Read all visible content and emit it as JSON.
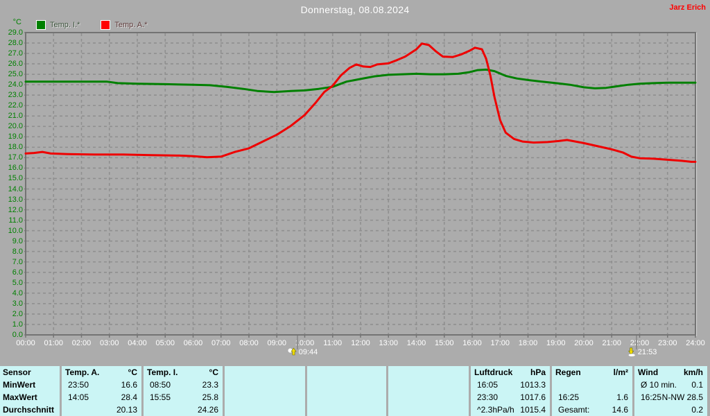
{
  "header": {
    "title": "Donnerstag, 08.08.2024",
    "author": "Jarz Erich"
  },
  "chart_data": {
    "type": "line",
    "title": "Donnerstag, 08.08.2024",
    "xlabel": "",
    "ylabel": "°C",
    "unit": "°C",
    "xlim_hours": [
      0,
      24
    ],
    "ylim": [
      0,
      29
    ],
    "ytick_step": 1.0,
    "grid": true,
    "legend_position": "top-left",
    "colors": {
      "temp_i": "#008000",
      "temp_a": "#ee0000",
      "grid": "#8f8f8f",
      "border": "#737373",
      "background": "#acacac",
      "axis_text_y": "#008000",
      "axis_text_x": "#ffffff"
    },
    "xticks": [
      "00:00",
      "01:00",
      "02:00",
      "03:00",
      "04:00",
      "05:00",
      "06:00",
      "07:00",
      "08:00",
      "09:00",
      "10:00",
      "11:00",
      "12:00",
      "13:00",
      "14:00",
      "15:00",
      "16:00",
      "17:00",
      "18:00",
      "19:00",
      "20:00",
      "21:00",
      "22:00",
      "23:00",
      "24:00"
    ],
    "legend": [
      {
        "label": "Temp. I.*",
        "color": "#008000"
      },
      {
        "label": "Temp. A.*",
        "color": "#ff0000"
      }
    ],
    "markers": [
      {
        "time": "09:44",
        "hour": 9.7333,
        "type": "sunrise"
      },
      {
        "time": "21:53",
        "hour": 21.8833,
        "type": "sunset"
      }
    ],
    "series": [
      {
        "name": "Temp. I.*",
        "color": "#008000",
        "points": [
          [
            0,
            24.3
          ],
          [
            1,
            24.3
          ],
          [
            2,
            24.3
          ],
          [
            2.9,
            24.3
          ],
          [
            3.3,
            24.15
          ],
          [
            4,
            24.1
          ],
          [
            5,
            24.05
          ],
          [
            6,
            24.0
          ],
          [
            6.6,
            23.95
          ],
          [
            7.2,
            23.8
          ],
          [
            7.8,
            23.6
          ],
          [
            8.3,
            23.4
          ],
          [
            8.9,
            23.3
          ],
          [
            9.5,
            23.4
          ],
          [
            10,
            23.45
          ],
          [
            10.5,
            23.6
          ],
          [
            11,
            23.8
          ],
          [
            11.5,
            24.3
          ],
          [
            12,
            24.55
          ],
          [
            12.5,
            24.8
          ],
          [
            13,
            24.95
          ],
          [
            13.5,
            25.0
          ],
          [
            14,
            25.05
          ],
          [
            14.5,
            25.0
          ],
          [
            15,
            25.0
          ],
          [
            15.5,
            25.05
          ],
          [
            15.9,
            25.2
          ],
          [
            16.2,
            25.4
          ],
          [
            16.5,
            25.45
          ],
          [
            16.8,
            25.3
          ],
          [
            17.2,
            24.85
          ],
          [
            17.6,
            24.6
          ],
          [
            18,
            24.45
          ],
          [
            18.5,
            24.3
          ],
          [
            19,
            24.15
          ],
          [
            19.5,
            24.0
          ],
          [
            20,
            23.75
          ],
          [
            20.4,
            23.65
          ],
          [
            20.8,
            23.7
          ],
          [
            21.2,
            23.85
          ],
          [
            21.6,
            24.0
          ],
          [
            22,
            24.1
          ],
          [
            22.5,
            24.15
          ],
          [
            23,
            24.2
          ],
          [
            23.5,
            24.2
          ],
          [
            24,
            24.2
          ]
        ]
      },
      {
        "name": "Temp. A.*",
        "color": "#ee0000",
        "points": [
          [
            0,
            17.4
          ],
          [
            0.3,
            17.45
          ],
          [
            0.6,
            17.55
          ],
          [
            0.9,
            17.4
          ],
          [
            1.5,
            17.35
          ],
          [
            2.5,
            17.3
          ],
          [
            3.5,
            17.3
          ],
          [
            4.5,
            17.25
          ],
          [
            5.5,
            17.2
          ],
          [
            6,
            17.15
          ],
          [
            6.5,
            17.05
          ],
          [
            7,
            17.1
          ],
          [
            7.5,
            17.55
          ],
          [
            8,
            17.9
          ],
          [
            8.5,
            18.55
          ],
          [
            9,
            19.2
          ],
          [
            9.5,
            20.05
          ],
          [
            10,
            21.1
          ],
          [
            10.4,
            22.3
          ],
          [
            10.7,
            23.3
          ],
          [
            11,
            23.9
          ],
          [
            11.3,
            24.9
          ],
          [
            11.6,
            25.6
          ],
          [
            11.85,
            25.95
          ],
          [
            12.1,
            25.75
          ],
          [
            12.35,
            25.7
          ],
          [
            12.6,
            25.95
          ],
          [
            13,
            26.05
          ],
          [
            13.3,
            26.35
          ],
          [
            13.6,
            26.7
          ],
          [
            14,
            27.4
          ],
          [
            14.2,
            27.95
          ],
          [
            14.45,
            27.8
          ],
          [
            14.7,
            27.2
          ],
          [
            14.95,
            26.7
          ],
          [
            15.3,
            26.65
          ],
          [
            15.6,
            26.9
          ],
          [
            15.9,
            27.25
          ],
          [
            16.1,
            27.55
          ],
          [
            16.35,
            27.4
          ],
          [
            16.5,
            26.5
          ],
          [
            16.65,
            24.9
          ],
          [
            16.8,
            22.8
          ],
          [
            17,
            20.6
          ],
          [
            17.2,
            19.4
          ],
          [
            17.5,
            18.8
          ],
          [
            17.8,
            18.55
          ],
          [
            18.2,
            18.45
          ],
          [
            18.7,
            18.5
          ],
          [
            19.1,
            18.6
          ],
          [
            19.4,
            18.7
          ],
          [
            19.7,
            18.55
          ],
          [
            20,
            18.4
          ],
          [
            20.5,
            18.1
          ],
          [
            21,
            17.8
          ],
          [
            21.4,
            17.5
          ],
          [
            21.7,
            17.1
          ],
          [
            22,
            16.95
          ],
          [
            22.5,
            16.9
          ],
          [
            23,
            16.8
          ],
          [
            23.5,
            16.7
          ],
          [
            23.85,
            16.6
          ],
          [
            24,
            16.6
          ]
        ]
      }
    ]
  },
  "table": {
    "row_labels": [
      "Sensor",
      "MinWert",
      "MaxWert",
      "Durchschnitt"
    ],
    "columns": [
      {
        "name": "Temp. A.",
        "unit": "°C",
        "rows": [
          [
            "23:50",
            "16.6"
          ],
          [
            "14:05",
            "28.4"
          ],
          [
            "",
            "20.13"
          ]
        ]
      },
      {
        "name": "Temp. I.",
        "unit": "°C",
        "rows": [
          [
            "08:50",
            "23.3"
          ],
          [
            "15:55",
            "25.8"
          ],
          [
            "",
            "24.26"
          ]
        ]
      },
      {
        "name": "",
        "unit": "",
        "rows": [
          [
            "",
            ""
          ],
          [
            "",
            ""
          ],
          [
            "",
            ""
          ]
        ]
      },
      {
        "name": "",
        "unit": "",
        "rows": [
          [
            "",
            ""
          ],
          [
            "",
            ""
          ],
          [
            "",
            ""
          ]
        ]
      },
      {
        "name": "",
        "unit": "",
        "rows": [
          [
            "",
            ""
          ],
          [
            "",
            ""
          ],
          [
            "",
            ""
          ]
        ]
      },
      {
        "name": "Luftdruck",
        "unit": "hPa",
        "rows": [
          [
            "16:05",
            "1013.3"
          ],
          [
            "23:30",
            "1017.6"
          ],
          [
            "^2.3hPa/h",
            "1015.4"
          ]
        ]
      },
      {
        "name": "Regen",
        "unit": "l/m²",
        "rows": [
          [
            "",
            ""
          ],
          [
            "16:25",
            "1.6"
          ],
          [
            "Gesamt:",
            "14.6"
          ]
        ]
      },
      {
        "name": "Wind",
        "unit": "km/h",
        "rows": [
          [
            "Ø 10 min.",
            "0.1"
          ],
          [
            "16:25",
            "N-NW 28.5"
          ],
          [
            "",
            "0.2"
          ]
        ]
      }
    ]
  }
}
